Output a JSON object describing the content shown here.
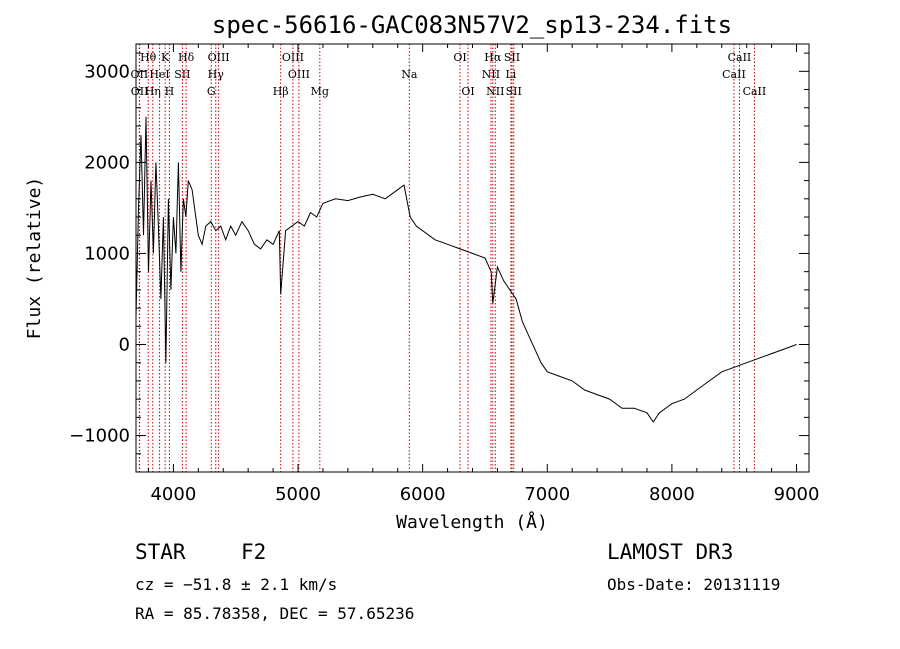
{
  "chart_data": {
    "type": "line",
    "title": "spec-56616-GAC083N57V2_sp13-234.fits",
    "xlabel": "Wavelength (Å)",
    "ylabel": "Flux (relative)",
    "xlim": [
      3700,
      9100
    ],
    "ylim": [
      -1400,
      3300
    ],
    "xticks": [
      4000,
      5000,
      6000,
      7000,
      8000,
      9000
    ],
    "xtick_labels": [
      "4000",
      "5000",
      "6000",
      "7000",
      "8000",
      "9000"
    ],
    "yticks": [
      -1000,
      0,
      1000,
      2000,
      3000
    ],
    "ytick_labels": [
      "−1000",
      "0",
      "1000",
      "2000",
      "3000"
    ],
    "grid": false,
    "line_colors": {
      "spectrum": "#000000",
      "lines": "#cc0000"
    },
    "spectrum": {
      "x": [
        3700,
        3720,
        3740,
        3760,
        3780,
        3800,
        3820,
        3840,
        3860,
        3880,
        3900,
        3920,
        3940,
        3960,
        3980,
        4000,
        4020,
        4040,
        4060,
        4080,
        4100,
        4120,
        4150,
        4180,
        4200,
        4230,
        4260,
        4300,
        4340,
        4380,
        4420,
        4460,
        4500,
        4550,
        4600,
        4650,
        4700,
        4750,
        4800,
        4850,
        4861,
        4900,
        4950,
        5000,
        5050,
        5100,
        5150,
        5200,
        5300,
        5400,
        5500,
        5600,
        5700,
        5800,
        5850,
        5900,
        5950,
        6000,
        6100,
        6200,
        6300,
        6400,
        6500,
        6550,
        6563,
        6600,
        6650,
        6700,
        6750,
        6800,
        6850,
        6900,
        6950,
        7000,
        7100,
        7200,
        7300,
        7400,
        7500,
        7600,
        7700,
        7800,
        7850,
        7900,
        8000,
        8100,
        8200,
        8300,
        8400,
        8500,
        8600,
        8700,
        8800,
        8900,
        9000
      ],
      "y": [
        300,
        1500,
        2300,
        1200,
        2500,
        800,
        1800,
        1000,
        2000,
        1300,
        500,
        1400,
        -200,
        1600,
        600,
        1400,
        1000,
        2000,
        800,
        1600,
        1400,
        1800,
        1700,
        1400,
        1200,
        1100,
        1300,
        1350,
        1250,
        1300,
        1150,
        1300,
        1200,
        1350,
        1250,
        1100,
        1050,
        1150,
        1100,
        1250,
        550,
        1250,
        1300,
        1350,
        1300,
        1450,
        1400,
        1550,
        1600,
        1580,
        1620,
        1650,
        1600,
        1700,
        1750,
        1400,
        1300,
        1250,
        1150,
        1100,
        1050,
        1000,
        950,
        800,
        450,
        850,
        700,
        600,
        500,
        250,
        100,
        -50,
        -200,
        -300,
        -350,
        -400,
        -500,
        -550,
        -600,
        -700,
        -700,
        -750,
        -850,
        -750,
        -650,
        -600,
        -500,
        -400,
        -300,
        -250,
        -200,
        -150,
        -100,
        -50,
        0
      ]
    },
    "spectral_lines": [
      {
        "label": "Hθ",
        "wavelength": 3798,
        "row": 0
      },
      {
        "label": "K",
        "wavelength": 3934,
        "row": 0
      },
      {
        "label": "Hδ",
        "wavelength": 4102,
        "row": 0
      },
      {
        "label": "OIII",
        "wavelength": 4363,
        "row": 0
      },
      {
        "label": "OIII",
        "wavelength": 4959,
        "row": 0
      },
      {
        "label": "OI",
        "wavelength": 6300,
        "row": 0
      },
      {
        "label": "Hα",
        "wavelength": 6563,
        "row": 0
      },
      {
        "label": "SII",
        "wavelength": 6717,
        "row": 0
      },
      {
        "label": "CaII",
        "wavelength": 8542,
        "row": 0
      },
      {
        "label": "OII",
        "wavelength": 3727,
        "row": 1
      },
      {
        "label": "HeI",
        "wavelength": 3889,
        "row": 1
      },
      {
        "label": "SII",
        "wavelength": 4072,
        "row": 1
      },
      {
        "label": "Hγ",
        "wavelength": 4340,
        "row": 1
      },
      {
        "label": "OIII",
        "wavelength": 5007,
        "row": 1
      },
      {
        "label": "Na",
        "wavelength": 5893,
        "row": 1
      },
      {
        "label": "NII",
        "wavelength": 6548,
        "row": 1
      },
      {
        "label": "Li",
        "wavelength": 6708,
        "row": 1
      },
      {
        "label": "CaII",
        "wavelength": 8498,
        "row": 1
      },
      {
        "label": "OII",
        "wavelength": 3729,
        "row": 2
      },
      {
        "label": "Hη",
        "wavelength": 3835,
        "row": 2
      },
      {
        "label": "H",
        "wavelength": 3968,
        "row": 2
      },
      {
        "label": "G",
        "wavelength": 4304,
        "row": 2
      },
      {
        "label": "Hβ",
        "wavelength": 4861,
        "row": 2
      },
      {
        "label": "Mg",
        "wavelength": 5175,
        "row": 2
      },
      {
        "label": "OI",
        "wavelength": 6364,
        "row": 2
      },
      {
        "label": "NII",
        "wavelength": 6583,
        "row": 2
      },
      {
        "label": "SII",
        "wavelength": 6731,
        "row": 2
      },
      {
        "label": "CaII",
        "wavelength": 8662,
        "row": 2
      }
    ]
  },
  "info": {
    "object_class": "STAR",
    "subclass": "F2",
    "survey": "LAMOST DR3",
    "cz": "cz = −51.8 ± 2.1 km/s",
    "obs_date": "Obs-Date: 20131119",
    "coords": "RA =  85.78358, DEC =  57.65236"
  }
}
